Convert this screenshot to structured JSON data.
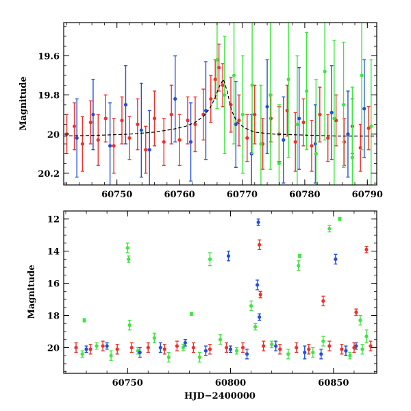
{
  "colors": {
    "red": "#f0302a",
    "green": "#3ee63e",
    "blue": "#1f4fe0",
    "model": "#000000"
  },
  "chart_data": [
    {
      "id": "top",
      "type": "scatter",
      "title": "",
      "xlabel": "",
      "ylabel": "Magnitude",
      "xlim": [
        60741.5,
        60791.5
      ],
      "ylim": [
        20.26,
        19.43
      ],
      "y_inverted": true,
      "xticks": [
        60750,
        60760,
        60770,
        60780,
        60790
      ],
      "xtick_labels": [
        "60750",
        "60760",
        "60770",
        "60780",
        "60790"
      ],
      "yticks": [
        19.6,
        19.8,
        20,
        20.2
      ],
      "ytick_labels": [
        "19.6",
        "19.8",
        "20",
        "20.2"
      ],
      "grid": false,
      "model_curve": {
        "x": [
          60741.5,
          60748,
          60752,
          60756,
          60759,
          60761,
          60762.5,
          60763.8,
          60764.8,
          60765.6,
          60766.3,
          60767.0,
          60767.6,
          60768.3,
          60769.2,
          60770.5,
          60772,
          60775,
          60780,
          60785,
          60791.5
        ],
        "y": [
          20.01,
          20.005,
          20.0,
          19.99,
          19.975,
          19.96,
          19.94,
          19.91,
          19.87,
          19.82,
          19.76,
          19.72,
          19.78,
          19.88,
          19.94,
          19.97,
          19.99,
          20.0,
          20.005,
          20.01,
          20.01
        ]
      },
      "series": [
        {
          "color": "red",
          "x": [
            60742.0,
            60743.2,
            60744.5,
            60745.8,
            60747.0,
            60748.2,
            60749.5,
            60750.8,
            60752.0,
            60753.3,
            60754.6,
            60756.0,
            60757.5,
            60758.7,
            60760.0,
            60761.3,
            60762.5,
            60763.8,
            60765.0,
            60765.7,
            60766.3,
            60766.9,
            60768.2,
            60769.5,
            60770.8,
            60772.0,
            60773.3,
            60774.6,
            60775.9,
            60777.2,
            60778.5,
            60779.8,
            60781.1,
            60782.4,
            60783.7,
            60785.0,
            60786.3,
            60787.6,
            60788.9,
            60790.2
          ],
          "y": [
            20.0,
            19.96,
            20.05,
            19.94,
            20.03,
            19.92,
            20.06,
            19.93,
            20.02,
            19.95,
            20.08,
            19.92,
            20.04,
            19.9,
            20.03,
            19.93,
            19.95,
            19.9,
            19.82,
            19.72,
            19.66,
            19.75,
            19.85,
            19.93,
            20.02,
            19.9,
            20.05,
            19.92,
            20.0,
            19.88,
            20.04,
            19.94,
            20.06,
            19.9,
            20.02,
            19.93,
            20.04,
            19.96,
            20.07,
            19.97
          ],
          "err": [
            0.1,
            0.12,
            0.14,
            0.11,
            0.13,
            0.12,
            0.14,
            0.12,
            0.11,
            0.13,
            0.12,
            0.14,
            0.12,
            0.15,
            0.13,
            0.12,
            0.14,
            0.13,
            0.12,
            0.1,
            0.12,
            0.11,
            0.14,
            0.13,
            0.12,
            0.15,
            0.13,
            0.12,
            0.14,
            0.13,
            0.15,
            0.12,
            0.13,
            0.14,
            0.12,
            0.13,
            0.12,
            0.14,
            0.12,
            0.11
          ]
        },
        {
          "color": "blue",
          "x": [
            60743.6,
            60746.2,
            60748.9,
            60751.4,
            60753.9,
            60755.2,
            60759.3,
            60761.8,
            60764.2,
            60769.0,
            60771.5,
            60774.0,
            60776.6,
            60779.1,
            60781.7,
            60784.3,
            60786.9,
            60789.5
          ],
          "y": [
            20.02,
            19.9,
            20.06,
            19.85,
            19.98,
            20.08,
            19.82,
            20.04,
            19.88,
            19.95,
            20.1,
            19.86,
            20.03,
            19.92,
            20.05,
            19.89,
            20.0,
            19.87
          ],
          "err": [
            0.2,
            0.18,
            0.22,
            0.2,
            0.24,
            0.2,
            0.22,
            0.2,
            0.25,
            0.22,
            0.2,
            0.24,
            0.22,
            0.26,
            0.2,
            0.24,
            0.22,
            0.25
          ]
        },
        {
          "color": "green",
          "x": [
            60766.0,
            60767.2,
            60768.7,
            60770.1,
            60771.6,
            60773.0,
            60774.5,
            60775.9,
            60777.4,
            60778.8,
            60780.3,
            60781.8,
            60783.2,
            60784.7,
            60786.2,
            60787.6,
            60789.1,
            60790.6
          ],
          "y": [
            19.62,
            19.8,
            19.7,
            19.9,
            19.75,
            20.05,
            19.8,
            20.15,
            19.72,
            19.95,
            19.78,
            20.1,
            19.68,
            19.92,
            19.85,
            20.12,
            19.7,
            19.96
          ],
          "err": [
            0.25,
            0.3,
            0.35,
            0.3,
            0.35,
            0.3,
            0.38,
            0.3,
            0.4,
            0.35,
            0.3,
            0.38,
            0.35,
            0.4,
            0.32,
            0.36,
            0.38,
            0.34
          ]
        }
      ]
    },
    {
      "id": "bottom",
      "type": "scatter",
      "title": "",
      "xlabel": "HJD−2400000",
      "ylabel": "Magnitude",
      "xlim": [
        60719,
        60871
      ],
      "ylim": [
        21.6,
        11.5
      ],
      "y_inverted": true,
      "xticks": [
        60750,
        60800,
        60850
      ],
      "xtick_labels": [
        "60750",
        "60800",
        "60850"
      ],
      "yticks": [
        12,
        14,
        16,
        18,
        20
      ],
      "ytick_labels": [
        "12",
        "14",
        "16",
        "18",
        "20"
      ],
      "grid": false,
      "series": [
        {
          "color": "green",
          "x": [
            60729,
            60750,
            60750.5,
            60751,
            60781,
            60790,
            60810,
            60812,
            60833,
            60833.6,
            60848,
            60853,
            60863,
            60866,
            60728,
            60735,
            60742,
            60755,
            60763,
            60770,
            60777,
            60785,
            60795,
            60803,
            60820,
            60828,
            60840,
            60845,
            60858,
            60864
          ],
          "y": [
            18.3,
            13.8,
            14.5,
            18.6,
            17.9,
            14.5,
            17.4,
            18.7,
            14.9,
            14.3,
            12.6,
            12.0,
            18.3,
            19.3,
            20.4,
            19.9,
            20.5,
            20.2,
            19.4,
            20.6,
            20.0,
            20.6,
            19.5,
            20.2,
            19.8,
            20.4,
            20.3,
            19.6,
            20.5,
            20.1
          ],
          "err": [
            0.1,
            0.3,
            0.2,
            0.3,
            0.1,
            0.4,
            0.3,
            0.2,
            0.3,
            0.1,
            0.2,
            0.1,
            0.3,
            0.4,
            0.2,
            0.2,
            0.3,
            0.2,
            0.3,
            0.3,
            0.2,
            0.3,
            0.3,
            0.2,
            0.2,
            0.3,
            0.3,
            0.3,
            0.2,
            0.3
          ]
        },
        {
          "color": "blue",
          "x": [
            60799,
            60813.5,
            60813,
            60814,
            60851,
            60730,
            60740,
            60756,
            60766,
            60778,
            60788,
            60800,
            60808,
            60822,
            60836,
            60844,
            60856,
            60861
          ],
          "y": [
            14.3,
            12.2,
            16.1,
            18.1,
            14.5,
            20.1,
            19.9,
            20.3,
            20.0,
            19.7,
            20.2,
            20.1,
            20.4,
            19.9,
            20.3,
            20.4,
            20.2,
            19.9
          ],
          "err": [
            0.3,
            0.2,
            0.3,
            0.2,
            0.3,
            0.2,
            0.2,
            0.3,
            0.3,
            0.2,
            0.3,
            0.2,
            0.3,
            0.3,
            0.4,
            0.3,
            0.3,
            0.2
          ]
        },
        {
          "color": "red",
          "x": [
            60814,
            60814.5,
            60845,
            60861,
            60866,
            60725,
            60732,
            60738,
            60745,
            60752,
            60760,
            60768,
            60774,
            60782,
            60790,
            60798,
            60806,
            60816,
            60824,
            60832,
            60838,
            60848,
            60854,
            60860,
            60868
          ],
          "y": [
            13.6,
            16.7,
            17.1,
            17.8,
            13.9,
            20.0,
            20.1,
            19.9,
            20.1,
            20.0,
            20.0,
            20.1,
            19.9,
            20.0,
            20.1,
            20.0,
            20.0,
            19.9,
            20.1,
            20.0,
            20.1,
            19.9,
            20.1,
            20.0,
            19.9
          ],
          "err": [
            0.3,
            0.2,
            0.3,
            0.2,
            0.2,
            0.3,
            0.3,
            0.3,
            0.3,
            0.3,
            0.3,
            0.3,
            0.3,
            0.3,
            0.3,
            0.3,
            0.3,
            0.3,
            0.3,
            0.3,
            0.3,
            0.3,
            0.3,
            0.3,
            0.3
          ]
        }
      ]
    }
  ]
}
